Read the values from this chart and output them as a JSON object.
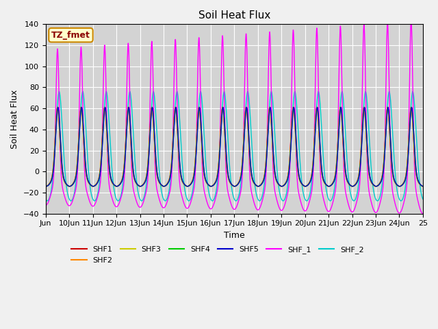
{
  "title": "Soil Heat Flux",
  "xlabel": "Time",
  "ylabel": "Soil Heat Flux",
  "ylim": [
    -40,
    140
  ],
  "n_days": 16,
  "background_color": "#f0f0f0",
  "plot_bg_color": "#d3d3d3",
  "legend_label": "TZ_fmet",
  "series": {
    "SHF1": {
      "color": "#cc0000"
    },
    "SHF2": {
      "color": "#ff8800"
    },
    "SHF3": {
      "color": "#cccc00"
    },
    "SHF4": {
      "color": "#00cc00"
    },
    "SHF5": {
      "color": "#0000cc"
    },
    "SHF_1": {
      "color": "#ff00ff"
    },
    "SHF_2": {
      "color": "#00cccc"
    }
  },
  "xtick_labels": [
    "Jun",
    "10Jun",
    "11Jun",
    "12Jun",
    "13Jun",
    "14Jun",
    "15Jun",
    "16Jun",
    "17Jun",
    "18Jun",
    "19Jun",
    "20Jun",
    "21Jun",
    "22Jun",
    "23Jun",
    "24Jun",
    "25"
  ],
  "grid_color": "#ffffff",
  "title_fontsize": 11,
  "label_fontsize": 9,
  "tick_fontsize": 8
}
